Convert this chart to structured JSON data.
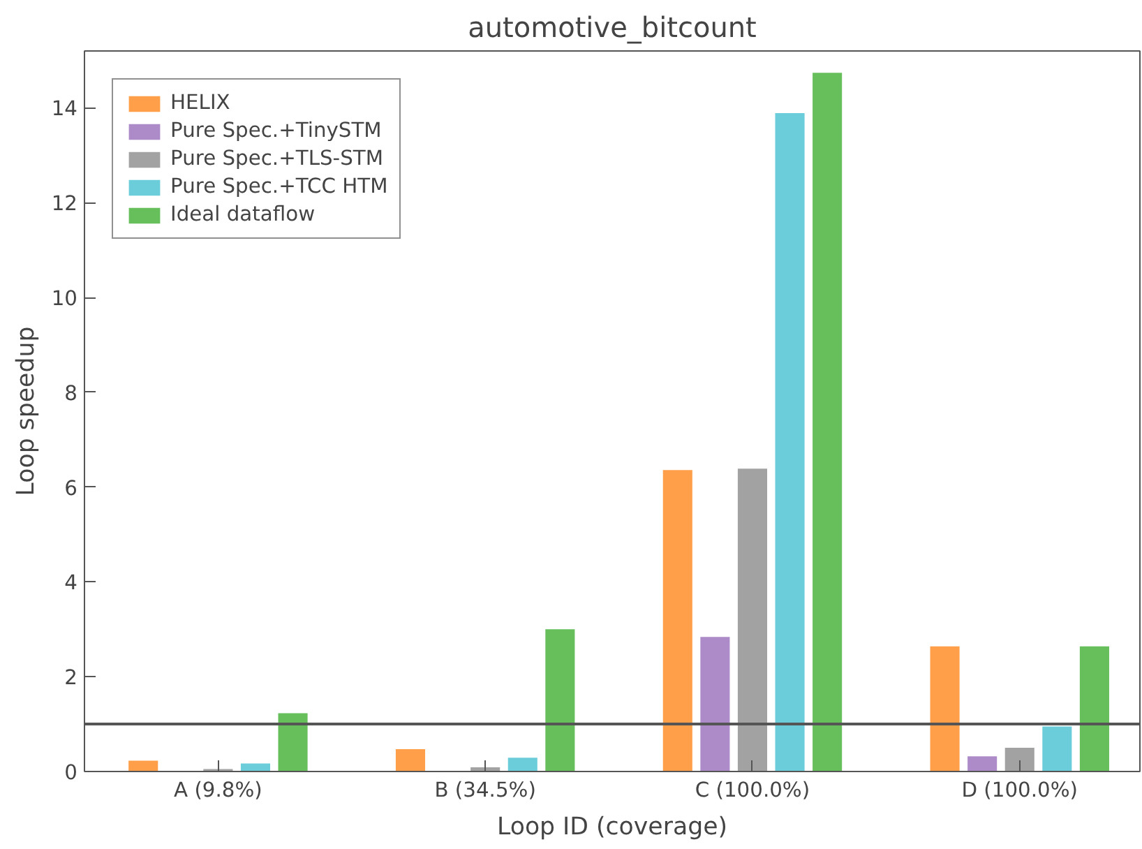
{
  "chart_data": {
    "type": "bar",
    "title": "automotive_bitcount",
    "xlabel": "Loop ID (coverage)",
    "ylabel": "Loop speedup",
    "categories": [
      "A (9.8%)",
      "B (34.5%)",
      "C (100.0%)",
      "D (100.0%)"
    ],
    "series": [
      {
        "name": "HELIX",
        "color": "#ff9f4a",
        "values": [
          0.23,
          0.47,
          6.36,
          2.64
        ]
      },
      {
        "name": "Pure Spec.+TinySTM",
        "color": "#ad8bc9",
        "values": [
          null,
          null,
          2.84,
          0.32
        ]
      },
      {
        "name": "Pure Spec.+TLS-STM",
        "color": "#a2a2a2",
        "values": [
          0.05,
          0.09,
          6.39,
          0.5
        ]
      },
      {
        "name": "Pure Spec.+TCC HTM",
        "color": "#6ccdda",
        "values": [
          0.17,
          0.29,
          13.89,
          0.95
        ]
      },
      {
        "name": "Ideal dataflow",
        "color": "#67bf5c",
        "values": [
          1.23,
          3.0,
          14.74,
          2.64
        ]
      }
    ],
    "ylim": [
      0,
      15.2
    ],
    "yticks": [
      0,
      2,
      4,
      6,
      8,
      10,
      12,
      14
    ],
    "ref_lines": [
      {
        "axis": "y",
        "value": 1,
        "color": "#555555"
      }
    ],
    "grid": false,
    "legend": "top left"
  }
}
